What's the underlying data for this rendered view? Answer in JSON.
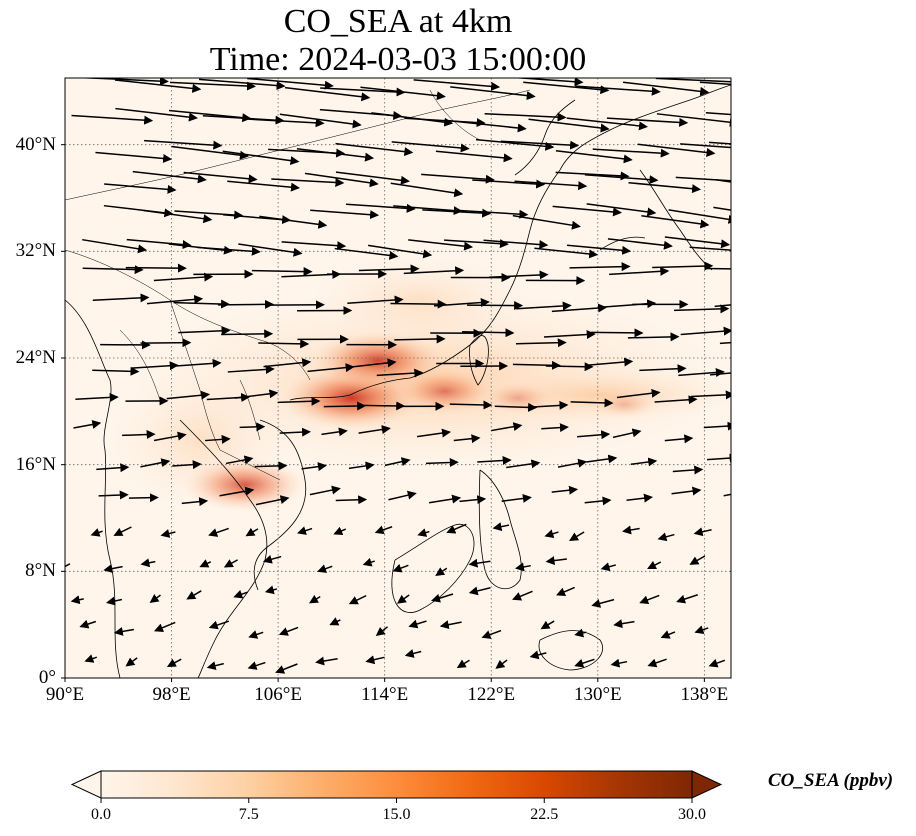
{
  "title_line1": "CO_SEA at 4km",
  "title_line2": "Time: 2024-03-03 15:00:00",
  "colorbar": {
    "label": "CO_SEA (ppbv)",
    "ticks": [
      "0.0",
      "7.5",
      "15.0",
      "22.5",
      "30.0"
    ],
    "min": 0,
    "max": 30,
    "colors": [
      "#fff5eb",
      "#fee6ce",
      "#fdd0a2",
      "#fdae6b",
      "#fd8d3c",
      "#f16913",
      "#d94801",
      "#a63603",
      "#7f2704"
    ],
    "extend": "both"
  },
  "map": {
    "lon_range": [
      90,
      140
    ],
    "lat_range": [
      0,
      45
    ],
    "lat_labels": [
      "40°N",
      "32°N",
      "24°N",
      "16°N",
      "8°N",
      "0°"
    ],
    "lon_labels": [
      "90°E",
      "98°E",
      "106°E",
      "114°E",
      "122°E",
      "130°E",
      "138°E"
    ],
    "gridlines": "dotted",
    "wind_vectors": "shown",
    "plumes": [
      {
        "lon": 111.5,
        "lat": 21.0,
        "value": 22
      },
      {
        "lon": 113.5,
        "lat": 23.8,
        "value": 20
      },
      {
        "lon": 118.5,
        "lat": 21.5,
        "value": 14
      },
      {
        "lon": 124.0,
        "lat": 21.0,
        "value": 8
      },
      {
        "lon": 132.0,
        "lat": 20.5,
        "value": 6
      },
      {
        "lon": 103.5,
        "lat": 14.5,
        "value": 18
      }
    ]
  }
}
